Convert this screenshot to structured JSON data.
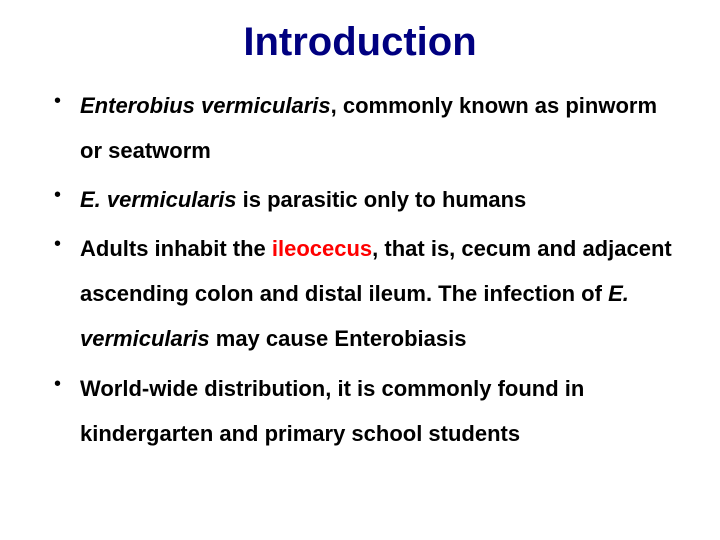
{
  "title": "Introduction",
  "title_color": "#000080",
  "title_fontsize": 40,
  "body_color": "#000000",
  "body_fontsize": 22,
  "background_color": "#ffffff",
  "highlight_color": "#ff0000",
  "bullets": {
    "b1_seg1": "Enterobius vermicularis",
    "b1_seg2": ", commonly known as pinworm or seatworm",
    "b2_seg1": "E. vermicularis",
    "b2_seg2": " is parasitic only to humans",
    "b3_seg1": "Adults inhabit the ",
    "b3_seg2": "ileocecus",
    "b3_seg3": ", that is, cecum and adjacent ascending colon and distal ileum. The infection of ",
    "b3_seg4": "E. vermicularis",
    "b3_seg5": " may cause Enterobiasis",
    "b4_seg1": "World-wide distribution, it is commonly found in kindergarten and primary school students"
  }
}
